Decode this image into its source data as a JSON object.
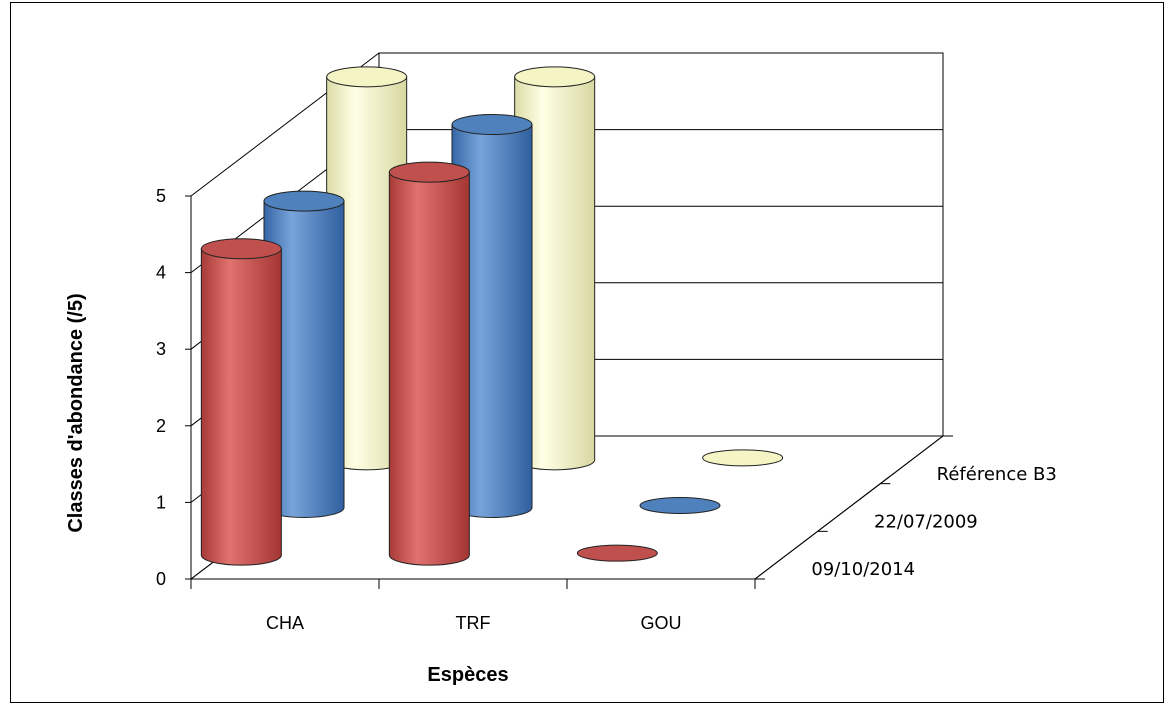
{
  "chart_data": {
    "type": "bar",
    "subtype": "3d-cylinder",
    "title": "",
    "xlabel": "Espèces",
    "ylabel": "Classes d'abondance  (/5)",
    "categories": [
      "CHA",
      "TRF",
      "GOU"
    ],
    "series": [
      {
        "name": "09/10/2014",
        "color": "#c0504d",
        "values": [
          4,
          5,
          0
        ]
      },
      {
        "name": "22/07/2009",
        "color": "#4f81bd",
        "values": [
          4,
          5,
          0
        ]
      },
      {
        "name": "Référence B3",
        "color": "#f5f5c0",
        "values": [
          5,
          5,
          0
        ]
      }
    ],
    "ylim": [
      0,
      5
    ],
    "yticks": [
      "0",
      "1",
      "2",
      "3",
      "4",
      "5"
    ],
    "grid": true
  }
}
